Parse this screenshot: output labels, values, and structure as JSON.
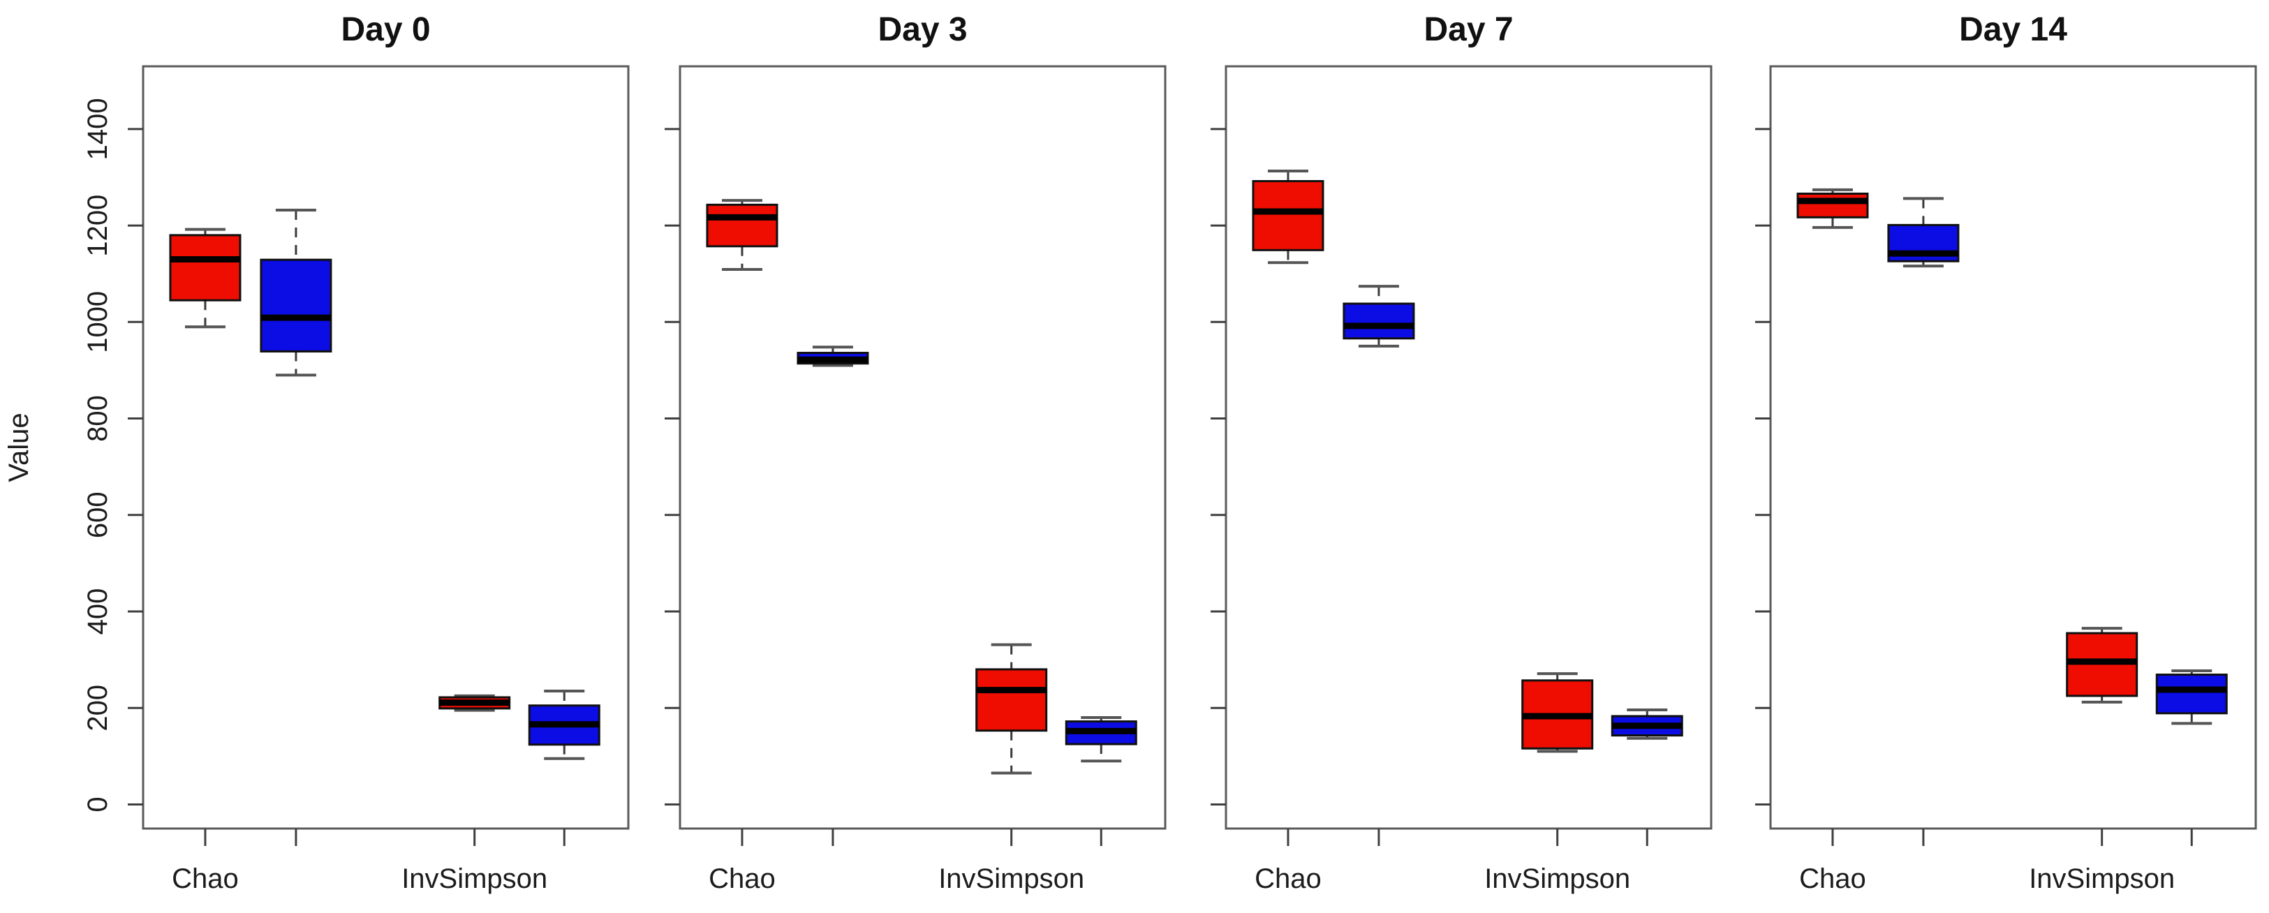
{
  "figure": {
    "background": "#ffffff",
    "kind": "four-panel R boxplot figure"
  },
  "chart_data": {
    "type": "boxplot",
    "title": "",
    "ylabel": "Value",
    "xlabel": "",
    "ylim": [
      -50,
      1530
    ],
    "yticks": [
      0,
      200,
      400,
      600,
      800,
      1000,
      1200,
      1400
    ],
    "grid": "off",
    "legend": "none",
    "group_labels": [
      "Chao",
      "InvSimpson"
    ],
    "series_colors": {
      "red": "#ee0d00",
      "blue": "#0c0ce4"
    },
    "panels": [
      {
        "title": "Day 0",
        "boxes": [
          {
            "group": "Chao",
            "color": "red",
            "min": 990,
            "q1": 1045,
            "median": 1130,
            "q3": 1180,
            "max": 1192
          },
          {
            "group": "Chao",
            "color": "blue",
            "min": 890,
            "q1": 939,
            "median": 1009,
            "q3": 1129,
            "max": 1232
          },
          {
            "group": "InvSimpson",
            "color": "red",
            "min": 195,
            "q1": 199,
            "median": 211,
            "q3": 222,
            "max": 225
          },
          {
            "group": "InvSimpson",
            "color": "blue",
            "min": 95,
            "q1": 124,
            "median": 166,
            "q3": 205,
            "max": 235
          }
        ]
      },
      {
        "title": "Day 3",
        "boxes": [
          {
            "group": "Chao",
            "color": "red",
            "min": 1109,
            "q1": 1157,
            "median": 1217,
            "q3": 1243,
            "max": 1252
          },
          {
            "group": "Chao",
            "color": "blue",
            "min": 910,
            "q1": 914,
            "median": 922,
            "q3": 936,
            "max": 948
          },
          {
            "group": "InvSimpson",
            "color": "red",
            "min": 65,
            "q1": 153,
            "median": 237,
            "q3": 280,
            "max": 331
          },
          {
            "group": "InvSimpson",
            "color": "blue",
            "min": 90,
            "q1": 125,
            "median": 152,
            "q3": 172,
            "max": 180
          }
        ]
      },
      {
        "title": "Day 7",
        "boxes": [
          {
            "group": "Chao",
            "color": "red",
            "min": 1123,
            "q1": 1149,
            "median": 1229,
            "q3": 1292,
            "max": 1313
          },
          {
            "group": "Chao",
            "color": "blue",
            "min": 950,
            "q1": 966,
            "median": 992,
            "q3": 1038,
            "max": 1074
          },
          {
            "group": "InvSimpson",
            "color": "red",
            "min": 110,
            "q1": 116,
            "median": 183,
            "q3": 257,
            "max": 271
          },
          {
            "group": "InvSimpson",
            "color": "blue",
            "min": 137,
            "q1": 143,
            "median": 163,
            "q3": 183,
            "max": 196
          }
        ]
      },
      {
        "title": "Day 14",
        "boxes": [
          {
            "group": "Chao",
            "color": "red",
            "min": 1196,
            "q1": 1217,
            "median": 1251,
            "q3": 1266,
            "max": 1274
          },
          {
            "group": "Chao",
            "color": "blue",
            "min": 1116,
            "q1": 1126,
            "median": 1142,
            "q3": 1201,
            "max": 1256
          },
          {
            "group": "InvSimpson",
            "color": "red",
            "min": 212,
            "q1": 225,
            "median": 296,
            "q3": 355,
            "max": 365
          },
          {
            "group": "InvSimpson",
            "color": "blue",
            "min": 168,
            "q1": 189,
            "median": 238,
            "q3": 269,
            "max": 277
          }
        ]
      }
    ]
  }
}
